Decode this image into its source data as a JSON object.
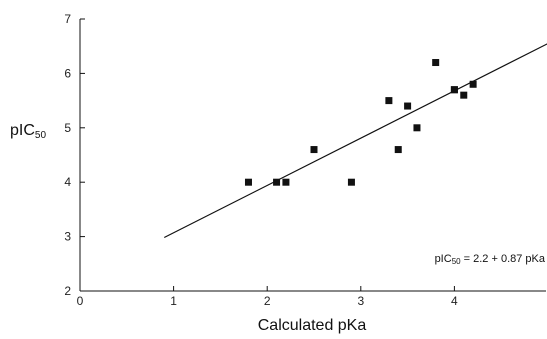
{
  "chart_data": {
    "type": "scatter",
    "xlabel": "Calculated pKa",
    "ylabel": {
      "main": "pIC",
      "sub": "50"
    },
    "xlim": [
      0,
      5
    ],
    "ylim": [
      2,
      7
    ],
    "xticks": [
      "0",
      "1",
      "2",
      "3",
      "4"
    ],
    "yticks": [
      "2",
      "3",
      "4",
      "5",
      "6",
      "7"
    ],
    "grid": false,
    "legend": "none",
    "series": [
      {
        "marker": "square",
        "color": "#111111",
        "points": [
          {
            "x": 1.8,
            "y": 4.0
          },
          {
            "x": 2.1,
            "y": 4.0
          },
          {
            "x": 2.2,
            "y": 4.0
          },
          {
            "x": 2.5,
            "y": 4.6
          },
          {
            "x": 2.9,
            "y": 4.0
          },
          {
            "x": 3.3,
            "y": 5.5
          },
          {
            "x": 3.4,
            "y": 4.6
          },
          {
            "x": 3.5,
            "y": 5.4
          },
          {
            "x": 3.6,
            "y": 5.0
          },
          {
            "x": 3.8,
            "y": 6.2
          },
          {
            "x": 4.0,
            "y": 5.7
          },
          {
            "x": 4.0,
            "y": 5.7
          },
          {
            "x": 4.1,
            "y": 5.6
          },
          {
            "x": 4.2,
            "y": 5.8
          }
        ]
      }
    ],
    "regression_line": {
      "intercept": 2.2,
      "slope": 0.87,
      "x_start": 0.9,
      "x_end": 5.0
    },
    "annotation": {
      "prefix": "pIC",
      "sub": "50",
      "equation": " = 2.2 + 0.87 pKa"
    }
  }
}
